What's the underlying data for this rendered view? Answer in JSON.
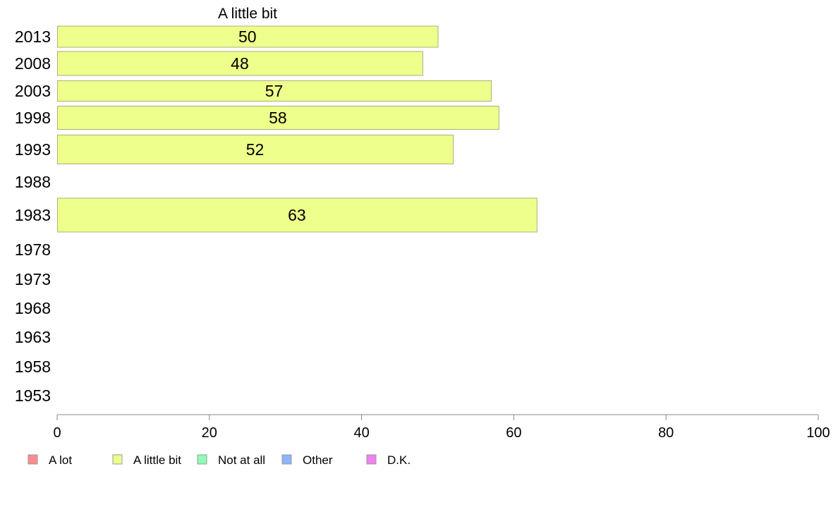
{
  "chart_data": {
    "type": "bar",
    "orientation": "horizontal",
    "title": "A little bit",
    "categories": [
      "2013",
      "2008",
      "2003",
      "1998",
      "1993",
      "1988",
      "1983",
      "1978",
      "1973",
      "1968",
      "1963",
      "1958",
      "1953"
    ],
    "series": [
      {
        "name": "A little bit",
        "color": "#eeff8c",
        "values": [
          50,
          48,
          57,
          58,
          52,
          null,
          63,
          null,
          null,
          null,
          null,
          null,
          null
        ]
      }
    ],
    "data_labels": [
      "50",
      "48",
      "57",
      "58",
      "52",
      "",
      "63",
      "",
      "",
      "",
      "",
      "",
      ""
    ],
    "xlim": [
      0,
      100
    ],
    "x_ticks": [
      "0",
      "20",
      "40",
      "60",
      "80",
      "100"
    ],
    "legend": {
      "placement": "bottom-left",
      "items": [
        {
          "label": "A lot",
          "color": "#ff8c8c"
        },
        {
          "label": "A little bit",
          "color": "#eeff8c"
        },
        {
          "label": "Not at all",
          "color": "#8cffb4"
        },
        {
          "label": "Other",
          "color": "#8cb4ff"
        },
        {
          "label": "D.K.",
          "color": "#ee82ee"
        }
      ]
    },
    "grid": false
  }
}
